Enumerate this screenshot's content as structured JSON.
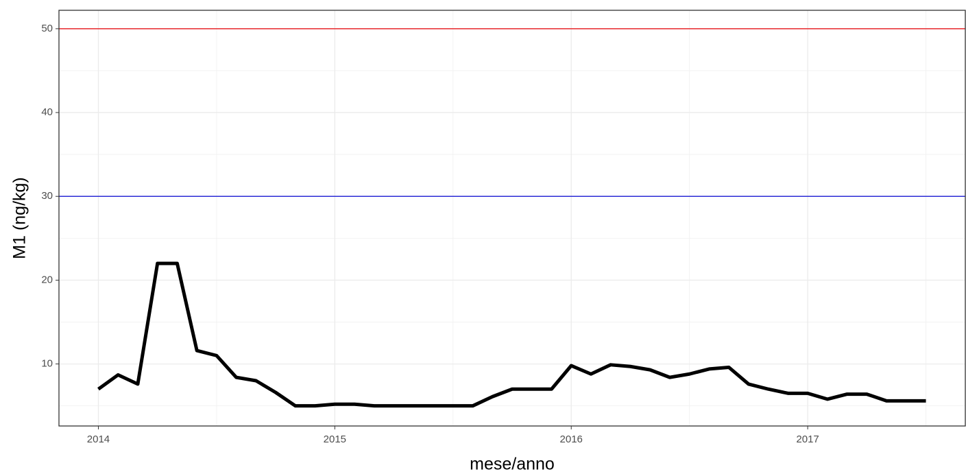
{
  "chart_data": {
    "type": "line",
    "x_label": "mese/anno",
    "y_label": "M1 (ng/kg)",
    "x": [
      "2014-01",
      "2014-02",
      "2014-03",
      "2014-04",
      "2014-05",
      "2014-06",
      "2014-07",
      "2014-08",
      "2014-09",
      "2014-10",
      "2014-11",
      "2014-12",
      "2015-01",
      "2015-02",
      "2015-03",
      "2015-04",
      "2015-05",
      "2015-06",
      "2015-07",
      "2015-08",
      "2015-09",
      "2015-10",
      "2015-11",
      "2015-12",
      "2016-01",
      "2016-02",
      "2016-03",
      "2016-04",
      "2016-05",
      "2016-06",
      "2016-07",
      "2016-08",
      "2016-09",
      "2016-10",
      "2016-11",
      "2016-12",
      "2017-01",
      "2017-02",
      "2017-03",
      "2017-04",
      "2017-05",
      "2017-06",
      "2017-07"
    ],
    "series": [
      {
        "color": "#000000",
        "values": [
          7,
          8.7,
          7.6,
          22,
          22,
          11.6,
          11,
          8.4,
          8,
          6.6,
          5,
          5,
          5.2,
          5.2,
          5,
          5,
          5,
          5,
          5,
          5,
          6.1,
          7,
          7,
          7,
          9.8,
          8.8,
          9.9,
          9.7,
          9.3,
          8.4,
          8.8,
          9.4,
          9.6,
          7.6,
          7,
          6.5,
          6.5,
          5.8,
          6.4,
          6.4,
          5.6,
          5.6,
          5.6
        ]
      }
    ],
    "hlines": [
      {
        "value": 50,
        "color": "#e8262b"
      },
      {
        "value": 30,
        "color": "#2b2bd6"
      }
    ],
    "xlim": [
      "2013-11",
      "2017-09"
    ],
    "xticks": [
      {
        "value": "2014-01",
        "label": "2014"
      },
      {
        "value": "2015-01",
        "label": "2015"
      },
      {
        "value": "2016-01",
        "label": "2016"
      },
      {
        "value": "2017-01",
        "label": "2017"
      }
    ],
    "ylim": [
      2.6,
      52.2
    ],
    "yticks": [
      10,
      20,
      30,
      40,
      50
    ],
    "grid": true
  }
}
